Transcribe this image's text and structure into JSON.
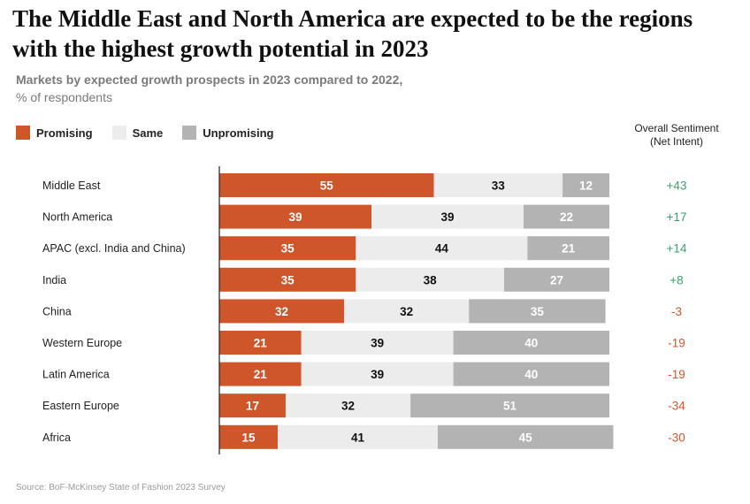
{
  "title": "The Middle East and North America are expected to be the regions with the highest growth potential in 2023",
  "subtitle_line1": "Markets by expected growth prospects in 2023 compared to 2022,",
  "subtitle_line2": "% of respondents",
  "legend": [
    {
      "label": "Promising",
      "color": "#cf562b"
    },
    {
      "label": "Same",
      "color": "#ececec"
    },
    {
      "label": "Unpromising",
      "color": "#b3b3b3"
    }
  ],
  "sentiment_header_line1": "Overall Sentiment",
  "sentiment_header_line2": "(Net Intent)",
  "colors": {
    "positive": "#3f9e6e",
    "negative": "#cf562b",
    "promising": "#cf562b",
    "same": "#ececec",
    "unpromising": "#b3b3b3"
  },
  "source": "Source: BoF-McKinsey State of Fashion 2023 Survey",
  "chart_data": {
    "type": "bar",
    "orientation": "horizontal",
    "stacked": true,
    "categories": [
      "Middle East",
      "North America",
      "APAC (excl. India and China)",
      "India",
      "China",
      "Western Europe",
      "Latin America",
      "Eastern Europe",
      "Africa"
    ],
    "series": [
      {
        "name": "Promising",
        "values": [
          55,
          39,
          35,
          35,
          32,
          21,
          21,
          17,
          15
        ]
      },
      {
        "name": "Same",
        "values": [
          33,
          39,
          44,
          38,
          32,
          39,
          39,
          32,
          41
        ]
      },
      {
        "name": "Unpromising",
        "values": [
          12,
          22,
          21,
          27,
          35,
          40,
          40,
          51,
          45
        ]
      }
    ],
    "net_intent": [
      "+43",
      "+17",
      "+14",
      "+8",
      "-3",
      "-19",
      "-19",
      "-34",
      "-30"
    ],
    "xlim": [
      0,
      100
    ],
    "title": "The Middle East and North America are expected to be the regions with the highest growth potential in 2023",
    "xlabel": "% of respondents",
    "ylabel": ""
  }
}
